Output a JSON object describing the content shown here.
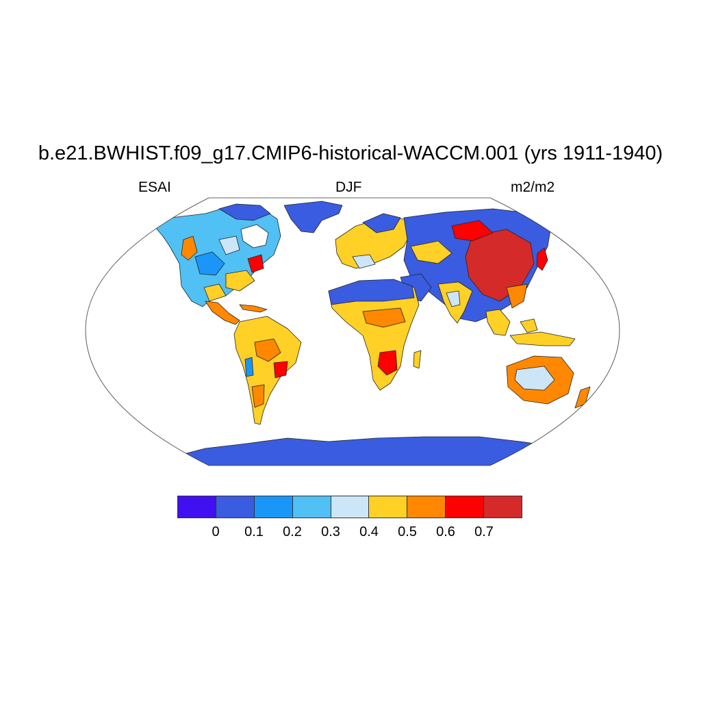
{
  "title": "b.e21.BWHIST.f09_g17.CMIP6-historical-WACCM.001 (yrs 1911-1940)",
  "subtitle_left": "ESAI",
  "subtitle_center": "DJF",
  "subtitle_right": "m2/m2",
  "colorbar": {
    "colors": [
      "#4010F0",
      "#3A5CE0",
      "#1A96F8",
      "#50C0F5",
      "#CCE6F7",
      "#FFD025",
      "#FF8800",
      "#FF0000",
      "#D42A2A"
    ],
    "labels": [
      "0",
      "0.1",
      "0.2",
      "0.3",
      "0.4",
      "0.5",
      "0.6",
      "0.7"
    ]
  },
  "legend_colors": {
    "ice": "#3A5CE0",
    "desert": "#3A5CE0",
    "high": "#D42A2A",
    "red": "#FF0000",
    "orange": "#FF8800",
    "yellow": "#FFD025",
    "pale": "#CCE6F7",
    "lightblue": "#50C0F5",
    "blue": "#1A96F8"
  }
}
